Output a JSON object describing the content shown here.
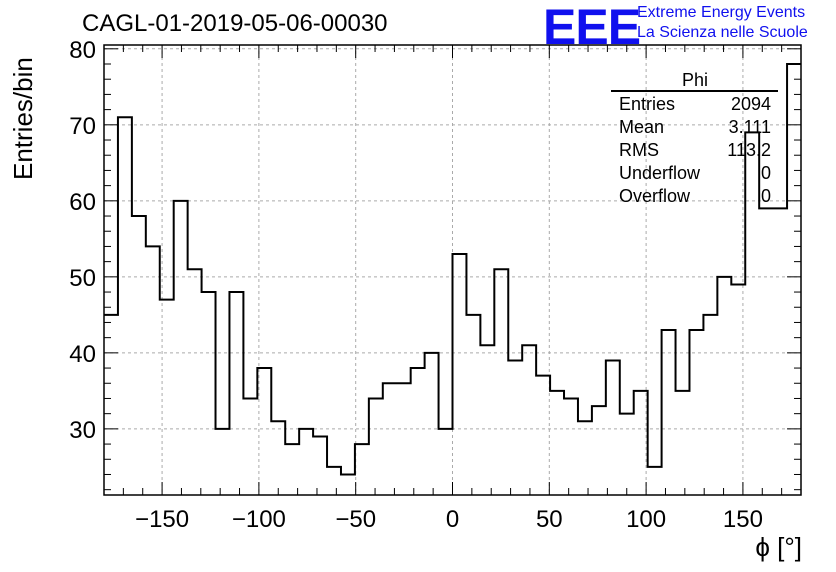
{
  "header": {
    "title": "CAGL-01-2019-05-06-00030",
    "logo_text": "EEE",
    "logo_line1": "Extreme Energy Events",
    "logo_line2": "La Scienza nelle Scuole"
  },
  "stats_box": {
    "title": "Phi",
    "rows": [
      {
        "key": "Entries",
        "value": "2094"
      },
      {
        "key": "Mean",
        "value": "3.111"
      },
      {
        "key": "RMS",
        "value": "113.2"
      },
      {
        "key": "Underflow",
        "value": "0"
      },
      {
        "key": "Overflow",
        "value": "0"
      }
    ]
  },
  "colors": {
    "line": "#000000",
    "grid": "#aaaaaa",
    "accent": "#1010ee"
  },
  "chart_data": {
    "type": "histogram",
    "title": "CAGL-01-2019-05-06-00030",
    "xlabel": "ϕ [°]",
    "ylabel": "Entries/bin",
    "xlim": [
      -180,
      180
    ],
    "ylim": [
      21.3,
      80.5
    ],
    "grid": true,
    "bin_width": 7.2,
    "bin_edges_start": -180,
    "x_ticks": [
      -150,
      -100,
      -50,
      0,
      50,
      100,
      150
    ],
    "y_ticks": [
      30,
      40,
      50,
      60,
      70,
      80
    ],
    "values": [
      45,
      71,
      58,
      54,
      47,
      60,
      51,
      48,
      30,
      48,
      34,
      38,
      31,
      28,
      30,
      29,
      25,
      24,
      28,
      34,
      36,
      36,
      38,
      40,
      30,
      53,
      45,
      41,
      51,
      39,
      41,
      37,
      35,
      34,
      31,
      33,
      39,
      32,
      35,
      25,
      43,
      35,
      43,
      45,
      50,
      49,
      69,
      59,
      59,
      78
    ]
  }
}
